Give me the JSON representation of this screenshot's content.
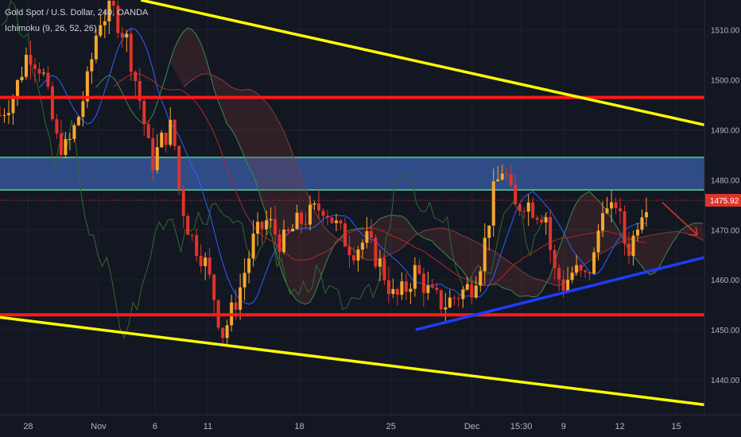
{
  "header": {
    "title": "Gold Spot / U.S. Dollar, 240, OANDA",
    "indicator": "Ichimoku (9, 26, 52, 26)"
  },
  "colors": {
    "background": "#131722",
    "up": "#f7a72e",
    "down": "#e0342b",
    "support_line": "#ff1a1a",
    "trend_yellow": "#ffff00",
    "trend_blue": "#1f3cff",
    "zone_fill": "#3a5fa8",
    "zone_edge": "#4caf86",
    "last_price": "#e0342b"
  },
  "chart_data": {
    "type": "candlestick",
    "y_ticks": [
      "1510.00",
      "1500.00",
      "1490.00",
      "1480.00",
      "1470.00",
      "1460.00",
      "1450.00",
      "1440.00"
    ],
    "x_ticks": [
      "28",
      "Nov",
      "6",
      "11",
      "18",
      "25",
      "Dec",
      "15:30",
      "9",
      "12",
      "15"
    ],
    "last_price_label": "1475.92",
    "last_price": 1475.92,
    "ylim": [
      1433,
      1516
    ],
    "xlim": [
      0,
      100
    ],
    "resistance_zone": [
      1478,
      1484.5
    ],
    "horizontal_lines": [
      1496.5,
      1453
    ],
    "trend_lines_yellow": [
      {
        "from": [
          20,
          1516
        ],
        "to": [
          100,
          1491
        ]
      },
      {
        "from": [
          0,
          1452.5
        ],
        "to": [
          100,
          1435
        ]
      }
    ],
    "trend_line_blue": {
      "from": [
        59,
        1450
      ],
      "to": [
        100,
        1464.5
      ]
    },
    "projection_arrow": {
      "from": [
        94,
        1475.5
      ],
      "to": [
        99,
        1469
      ]
    },
    "price_path": [
      [
        0,
        1493
      ],
      [
        2,
        1497
      ],
      [
        4,
        1506
      ],
      [
        6,
        1502
      ],
      [
        8,
        1488
      ],
      [
        9.5,
        1486
      ],
      [
        11,
        1492
      ],
      [
        12.5,
        1500
      ],
      [
        14,
        1512
      ],
      [
        16,
        1514
      ],
      [
        18,
        1508
      ],
      [
        20,
        1495
      ],
      [
        21.5,
        1483
      ],
      [
        23,
        1488
      ],
      [
        24.5,
        1491
      ],
      [
        25.5,
        1477
      ],
      [
        27,
        1469
      ],
      [
        29,
        1464
      ],
      [
        30.5,
        1456
      ],
      [
        31.5,
        1449
      ],
      [
        32.5,
        1452
      ],
      [
        34,
        1458
      ],
      [
        36,
        1468
      ],
      [
        38,
        1472
      ],
      [
        40,
        1467
      ],
      [
        42,
        1471
      ],
      [
        44,
        1473
      ],
      [
        46,
        1475
      ],
      [
        48,
        1470
      ],
      [
        50,
        1466
      ],
      [
        52,
        1468
      ],
      [
        54,
        1463
      ],
      [
        56,
        1456
      ],
      [
        57.5,
        1458
      ],
      [
        59,
        1462
      ],
      [
        61,
        1457
      ],
      [
        63,
        1455
      ],
      [
        65,
        1457
      ],
      [
        67,
        1459
      ],
      [
        68.5,
        1465
      ],
      [
        70,
        1477
      ],
      [
        71.5,
        1483
      ],
      [
        73,
        1474
      ],
      [
        74.5,
        1476
      ],
      [
        76,
        1474
      ],
      [
        77.5,
        1473
      ],
      [
        78.5,
        1462
      ],
      [
        80,
        1459
      ],
      [
        81.5,
        1462
      ],
      [
        83,
        1460
      ],
      [
        84.5,
        1465
      ],
      [
        85.5,
        1476
      ],
      [
        86.5,
        1472
      ],
      [
        87.5,
        1476
      ],
      [
        88.5,
        1468
      ],
      [
        89.5,
        1466
      ],
      [
        90.5,
        1472
      ],
      [
        91.5,
        1476
      ]
    ]
  }
}
